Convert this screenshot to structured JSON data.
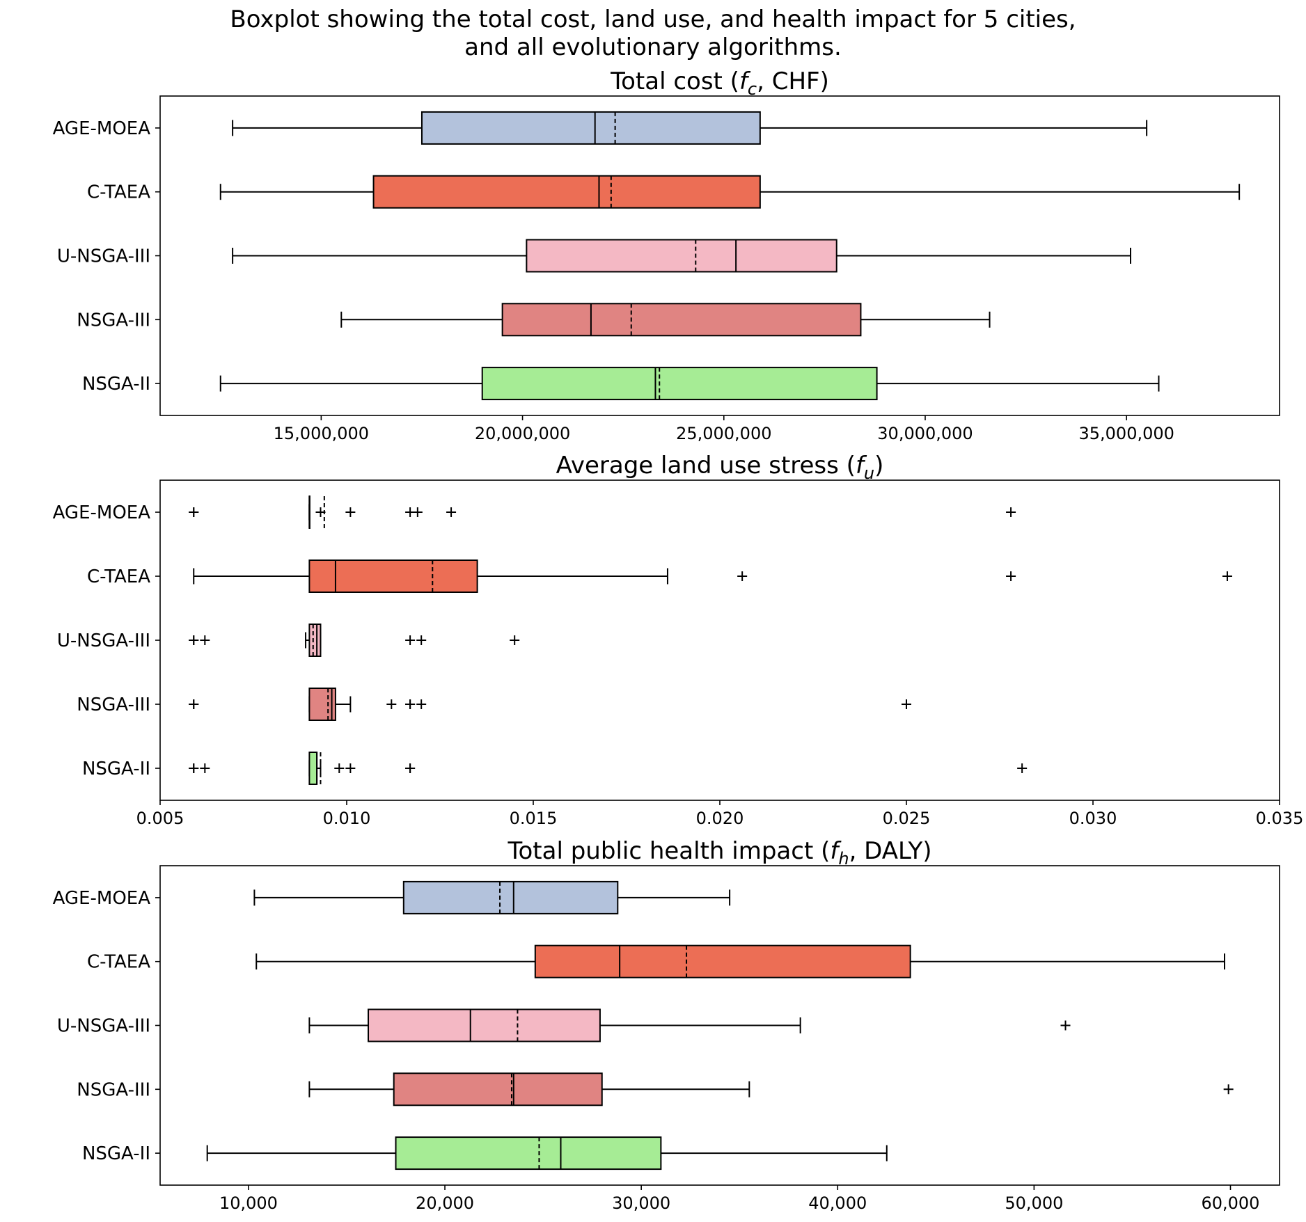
{
  "title_lines": [
    "Boxplot showing the total cost, land use, and health impact for 5 cities,",
    "and all evolutionary algorithms."
  ],
  "chart_data": [
    {
      "type": "box",
      "title": "Total cost (f_c, CHF)",
      "title_parts": [
        "Total cost (",
        "f",
        "c",
        ", CHF)"
      ],
      "orientation": "horizontal",
      "categories": [
        "AGE-MOEA",
        "C-TAEA",
        "U-NSGA-III",
        "NSGA-III",
        "NSGA-II"
      ],
      "colors": [
        "#b3c2dc",
        "#ec6e55",
        "#f4b8c4",
        "#e08482",
        "#a6ec95"
      ],
      "xlim": [
        11000000,
        38800000
      ],
      "xticks": [
        15000000,
        20000000,
        25000000,
        30000000,
        35000000
      ],
      "xtick_labels": [
        "15,000,000",
        "20,000,000",
        "25,000,000",
        "30,000,000",
        "35,000,000"
      ],
      "boxes": [
        {
          "whislo": 12800000,
          "q1": 17500000,
          "med": 21800000,
          "mean": 22300000,
          "q3": 25900000,
          "whishi": 35500000,
          "fliers": []
        },
        {
          "whislo": 12500000,
          "q1": 16300000,
          "med": 21900000,
          "mean": 22200000,
          "q3": 25900000,
          "whishi": 37800000,
          "fliers": []
        },
        {
          "whislo": 12800000,
          "q1": 20100000,
          "med": 25300000,
          "mean": 24300000,
          "q3": 27800000,
          "whishi": 35100000,
          "fliers": []
        },
        {
          "whislo": 15500000,
          "q1": 19500000,
          "med": 21700000,
          "mean": 22700000,
          "q3": 28400000,
          "whishi": 31600000,
          "fliers": []
        },
        {
          "whislo": 12500000,
          "q1": 19000000,
          "med": 23300000,
          "mean": 23400000,
          "q3": 28800000,
          "whishi": 35800000,
          "fliers": []
        }
      ]
    },
    {
      "type": "box",
      "title": "Average land use stress (f_u)",
      "title_parts": [
        "Average land use stress (",
        "f",
        "u",
        ")"
      ],
      "orientation": "horizontal",
      "categories": [
        "AGE-MOEA",
        "C-TAEA",
        "U-NSGA-III",
        "NSGA-III",
        "NSGA-II"
      ],
      "colors": [
        "#b3c2dc",
        "#ec6e55",
        "#f4b8c4",
        "#e08482",
        "#a6ec95"
      ],
      "xlim": [
        0.005,
        0.035
      ],
      "xticks": [
        0.005,
        0.01,
        0.015,
        0.02,
        0.025,
        0.03,
        0.035
      ],
      "xtick_labels": [
        "0.005",
        "0.010",
        "0.015",
        "0.020",
        "0.025",
        "0.030",
        "0.035"
      ],
      "boxes": [
        {
          "whislo": 0.009,
          "q1": 0.009,
          "med": 0.009,
          "mean": 0.0094,
          "q3": 0.009,
          "whishi": 0.009,
          "fliers": [
            0.0059,
            0.0059,
            0.0093,
            0.0101,
            0.0117,
            0.0119,
            0.0128,
            0.0278
          ]
        },
        {
          "whislo": 0.0059,
          "q1": 0.009,
          "med": 0.0097,
          "mean": 0.0123,
          "q3": 0.0135,
          "whishi": 0.0186,
          "fliers": [
            0.0206,
            0.0278,
            0.0336
          ]
        },
        {
          "whislo": 0.0089,
          "q1": 0.009,
          "med": 0.0092,
          "mean": 0.0091,
          "q3": 0.0093,
          "whishi": 0.0093,
          "fliers": [
            0.0059,
            0.0059,
            0.0062,
            0.0117,
            0.012,
            0.0145
          ]
        },
        {
          "whislo": 0.009,
          "q1": 0.009,
          "med": 0.0096,
          "mean": 0.0095,
          "q3": 0.0097,
          "whishi": 0.0101,
          "fliers": [
            0.0059,
            0.0059,
            0.0112,
            0.0117,
            0.0117,
            0.012,
            0.025
          ]
        },
        {
          "whislo": 0.009,
          "q1": 0.009,
          "med": 0.0092,
          "mean": 0.0093,
          "q3": 0.0092,
          "whishi": 0.0093,
          "fliers": [
            0.0059,
            0.0059,
            0.0062,
            0.0098,
            0.0101,
            0.0117,
            0.0117,
            0.0281
          ]
        }
      ]
    },
    {
      "type": "box",
      "title": "Total public health impact (f_h, DALY)",
      "title_parts": [
        "Total public health impact (",
        "f",
        "h",
        ", DALY)"
      ],
      "orientation": "horizontal",
      "categories": [
        "AGE-MOEA",
        "C-TAEA",
        "U-NSGA-III",
        "NSGA-III",
        "NSGA-II"
      ],
      "colors": [
        "#b3c2dc",
        "#ec6e55",
        "#f4b8c4",
        "#e08482",
        "#a6ec95"
      ],
      "xlim": [
        5500,
        62500
      ],
      "xticks": [
        10000,
        20000,
        30000,
        40000,
        50000,
        60000
      ],
      "xtick_labels": [
        "10,000",
        "20,000",
        "30,000",
        "40,000",
        "50,000",
        "60,000"
      ],
      "boxes": [
        {
          "whislo": 10300,
          "q1": 17900,
          "med": 23500,
          "mean": 22800,
          "q3": 28800,
          "whishi": 34500,
          "fliers": []
        },
        {
          "whislo": 10400,
          "q1": 24600,
          "med": 28900,
          "mean": 32300,
          "q3": 43700,
          "whishi": 59700,
          "fliers": []
        },
        {
          "whislo": 13100,
          "q1": 16100,
          "med": 21300,
          "mean": 23700,
          "q3": 27900,
          "whishi": 38100,
          "fliers": [
            51600
          ]
        },
        {
          "whislo": 13100,
          "q1": 17400,
          "med": 23500,
          "mean": 23400,
          "q3": 28000,
          "whishi": 35500,
          "fliers": [
            59900
          ]
        },
        {
          "whislo": 7900,
          "q1": 17500,
          "med": 25900,
          "mean": 24800,
          "q3": 31000,
          "whishi": 42500,
          "fliers": []
        }
      ]
    }
  ]
}
